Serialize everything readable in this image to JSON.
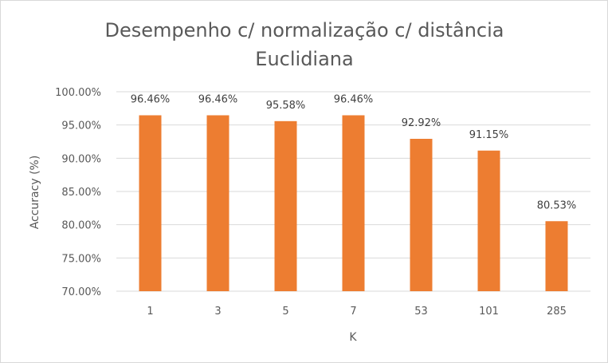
{
  "chart_data": {
    "type": "bar",
    "title_lines": [
      "Desempenho c/ normalização c/ distância",
      "Euclidiana"
    ],
    "xlabel": "K",
    "ylabel": "Accuracy (%)",
    "categories": [
      "1",
      "3",
      "5",
      "7",
      "53",
      "101",
      "285"
    ],
    "values": [
      96.46,
      96.46,
      95.58,
      96.46,
      92.92,
      91.15,
      80.53
    ],
    "data_labels": [
      "96.46%",
      "96.46%",
      "95.58%",
      "96.46%",
      "92.92%",
      "91.15%",
      "80.53%"
    ],
    "ylim": [
      70,
      100
    ],
    "yticks": [
      70,
      75,
      80,
      85,
      90,
      95,
      100
    ],
    "ytick_labels": [
      "70.00%",
      "75.00%",
      "80.00%",
      "85.00%",
      "90.00%",
      "95.00%",
      "100.00%"
    ],
    "grid": true,
    "legend": "none",
    "bar_color": "#ed7d31"
  }
}
